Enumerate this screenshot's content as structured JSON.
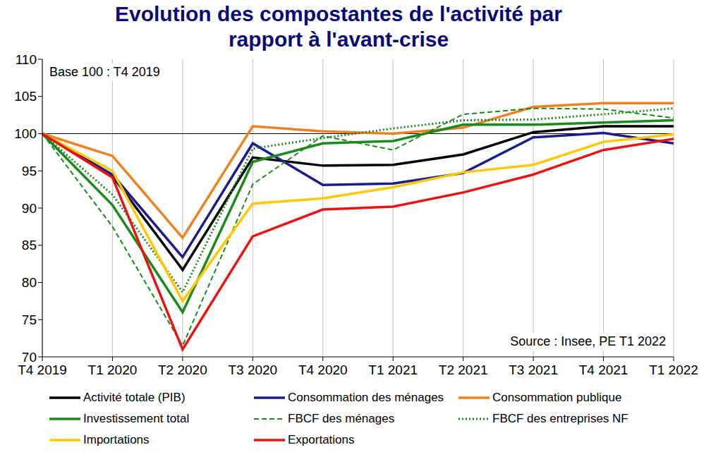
{
  "chart_data": {
    "type": "line",
    "title": "Evolution des compostantes de l'activité par\nrapport à l'avant-crise",
    "annotations": [
      "Base 100 : T4 2019",
      "Source : Insee, PE T1 2022"
    ],
    "categories": [
      "T4 2019",
      "T1 2020",
      "T2 2020",
      "T3 2020",
      "T4 2020",
      "T1 2021",
      "T2 2021",
      "T3 2021",
      "T4 2021",
      "T1 2022"
    ],
    "series": [
      {
        "name": "Activité totale (PIB)",
        "color": "#000000",
        "line_style": "solid",
        "values": [
          100,
          94.3,
          81.7,
          96.8,
          95.7,
          95.8,
          97.2,
          100.2,
          101,
          101
        ]
      },
      {
        "name": "Consommation des ménages",
        "color": "#1c1c8c",
        "line_style": "solid",
        "values": [
          100,
          94.5,
          83.4,
          98.7,
          93.1,
          93.3,
          94.7,
          99.5,
          100.1,
          98.7
        ]
      },
      {
        "name": "Consommation publique",
        "color": "#f08020",
        "line_style": "solid",
        "values": [
          100,
          97,
          86,
          101,
          100.3,
          100,
          100.8,
          103.6,
          104.1,
          104.1
        ]
      },
      {
        "name": "Investissement total",
        "color": "#1a8a1a",
        "line_style": "solid",
        "values": [
          100,
          90.4,
          76,
          96.2,
          98.7,
          99,
          101.2,
          101.2,
          101.5,
          101.8
        ]
      },
      {
        "name": "FBCF des ménages",
        "color": "#1a8a1a",
        "line_style": "dashed",
        "values": [
          100,
          87.5,
          71.5,
          93.2,
          99.7,
          97.8,
          102.6,
          103.4,
          103.3,
          102.1
        ]
      },
      {
        "name": "FBCF des entreprises NF",
        "color": "#1a8a1a",
        "line_style": "dotted",
        "values": [
          100,
          91.8,
          78.7,
          98,
          99.4,
          100.7,
          101.8,
          101.9,
          102.6,
          103.4
        ]
      },
      {
        "name": "Importations",
        "color": "#ffc800",
        "line_style": "solid",
        "values": [
          100,
          95,
          77.5,
          90.6,
          91.3,
          92.8,
          94.8,
          95.8,
          98.9,
          99.9
        ]
      },
      {
        "name": "Exportations",
        "color": "#ee1111",
        "line_style": "solid",
        "values": [
          100,
          94.1,
          71,
          86.2,
          89.8,
          90.2,
          92.1,
          94.5,
          97.8,
          99.3
        ]
      }
    ],
    "hline": 100,
    "ylim": [
      70,
      110
    ],
    "yticks": [
      70,
      75,
      80,
      85,
      90,
      95,
      100,
      105,
      110
    ],
    "grid": true,
    "legend": "bottom"
  }
}
